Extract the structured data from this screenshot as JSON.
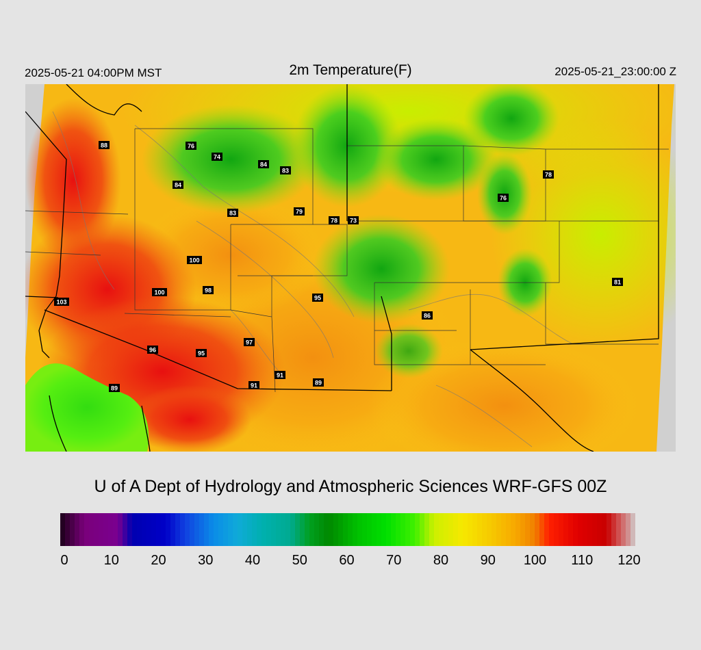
{
  "header": {
    "valid_local": "2025-05-21 04:00PM MST",
    "title": "2m Temperature(F)",
    "valid_utc": "2025-05-21_23:00:00 Z"
  },
  "credit": "U of A Dept of Hydrology and Atmospheric Sciences WRF-GFS 00Z",
  "colorbar": {
    "min": 0,
    "max": 120,
    "ticks": [
      "0",
      "10",
      "20",
      "30",
      "40",
      "50",
      "60",
      "70",
      "80",
      "90",
      "100",
      "110",
      "120"
    ]
  },
  "station_labels": [
    "88",
    "76",
    "74",
    "84",
    "83",
    "84",
    "83",
    "79",
    "78",
    "73",
    "78",
    "76",
    "100",
    "100",
    "98",
    "103",
    "95",
    "86",
    "81",
    "97",
    "96",
    "95",
    "89",
    "91",
    "91",
    "89"
  ],
  "colors": {
    "background": "#e4e4e4",
    "no_data": "#d0d0d0",
    "hot": "#e01010",
    "warm": "#f59a10",
    "mild": "#ccee00",
    "cool": "#22cc22",
    "coolest": "#119911",
    "border": "#000000",
    "contour": "#777777"
  }
}
